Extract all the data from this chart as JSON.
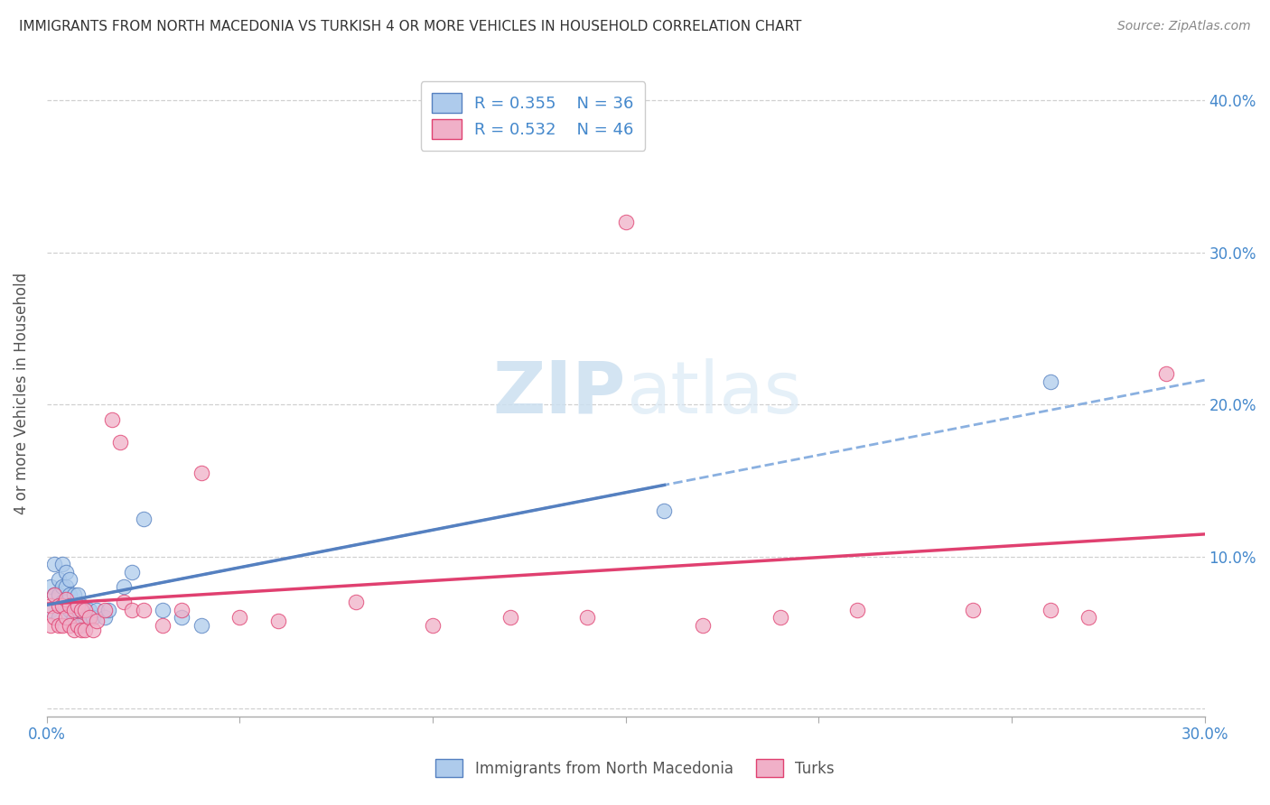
{
  "title": "IMMIGRANTS FROM NORTH MACEDONIA VS TURKISH 4 OR MORE VEHICLES IN HOUSEHOLD CORRELATION CHART",
  "source": "Source: ZipAtlas.com",
  "ylabel": "4 or more Vehicles in Household",
  "xlim": [
    0.0,
    0.3
  ],
  "ylim": [
    -0.005,
    0.42
  ],
  "xticks": [
    0.0,
    0.05,
    0.1,
    0.15,
    0.2,
    0.25,
    0.3
  ],
  "xticklabels": [
    "0.0%",
    "",
    "",
    "",
    "",
    "",
    "30.0%"
  ],
  "yticks": [
    0.0,
    0.1,
    0.2,
    0.3,
    0.4
  ],
  "yticklabels_right": [
    "",
    "10.0%",
    "20.0%",
    "30.0%",
    "40.0%"
  ],
  "legend_r_blue": "R = 0.355",
  "legend_n_blue": "N = 36",
  "legend_r_pink": "R = 0.532",
  "legend_n_pink": "N = 46",
  "blue_scatter_x": [
    0.001,
    0.001,
    0.002,
    0.002,
    0.003,
    0.003,
    0.003,
    0.004,
    0.004,
    0.004,
    0.005,
    0.005,
    0.005,
    0.006,
    0.006,
    0.006,
    0.007,
    0.007,
    0.008,
    0.008,
    0.009,
    0.009,
    0.01,
    0.011,
    0.012,
    0.013,
    0.015,
    0.016,
    0.02,
    0.022,
    0.025,
    0.03,
    0.035,
    0.04,
    0.16,
    0.26
  ],
  "blue_scatter_y": [
    0.065,
    0.08,
    0.075,
    0.095,
    0.06,
    0.075,
    0.085,
    0.07,
    0.08,
    0.095,
    0.07,
    0.08,
    0.09,
    0.065,
    0.075,
    0.085,
    0.06,
    0.075,
    0.065,
    0.075,
    0.055,
    0.068,
    0.06,
    0.065,
    0.06,
    0.065,
    0.06,
    0.065,
    0.08,
    0.09,
    0.125,
    0.065,
    0.06,
    0.055,
    0.13,
    0.215
  ],
  "pink_scatter_x": [
    0.001,
    0.001,
    0.002,
    0.002,
    0.003,
    0.003,
    0.004,
    0.004,
    0.005,
    0.005,
    0.006,
    0.006,
    0.007,
    0.007,
    0.008,
    0.008,
    0.009,
    0.009,
    0.01,
    0.01,
    0.011,
    0.012,
    0.013,
    0.015,
    0.017,
    0.019,
    0.02,
    0.022,
    0.025,
    0.03,
    0.035,
    0.04,
    0.05,
    0.06,
    0.08,
    0.1,
    0.12,
    0.14,
    0.15,
    0.17,
    0.19,
    0.21,
    0.24,
    0.26,
    0.27,
    0.29
  ],
  "pink_scatter_y": [
    0.055,
    0.068,
    0.06,
    0.075,
    0.055,
    0.068,
    0.055,
    0.068,
    0.06,
    0.072,
    0.055,
    0.068,
    0.052,
    0.065,
    0.055,
    0.068,
    0.052,
    0.065,
    0.052,
    0.065,
    0.06,
    0.052,
    0.058,
    0.065,
    0.19,
    0.175,
    0.07,
    0.065,
    0.065,
    0.055,
    0.065,
    0.155,
    0.06,
    0.058,
    0.07,
    0.055,
    0.06,
    0.06,
    0.32,
    0.055,
    0.06,
    0.065,
    0.065,
    0.065,
    0.06,
    0.22
  ],
  "blue_color": "#aecbec",
  "pink_color": "#f0b0c8",
  "blue_line_color": "#5580c0",
  "pink_line_color": "#e04070",
  "dashed_line_color": "#8ab0e0",
  "watermark_color": "#cce0f0",
  "background_color": "#ffffff",
  "grid_color": "#d0d0d0",
  "tick_color": "#4488cc",
  "title_color": "#333333",
  "source_color": "#888888",
  "ylabel_color": "#555555"
}
